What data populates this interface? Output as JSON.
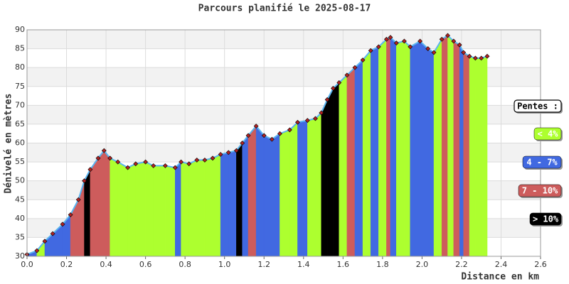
{
  "chart_data": {
    "type": "elevation-area",
    "title": "Parcours planifié le 2025-08-17",
    "x_label": "Distance en km",
    "y_label": "Dénivelé en mètres",
    "x": [
      0.0,
      0.05,
      0.09,
      0.13,
      0.18,
      0.22,
      0.26,
      0.29,
      0.32,
      0.36,
      0.39,
      0.42,
      0.46,
      0.51,
      0.55,
      0.6,
      0.64,
      0.7,
      0.75,
      0.78,
      0.82,
      0.86,
      0.9,
      0.94,
      0.98,
      1.02,
      1.06,
      1.09,
      1.12,
      1.16,
      1.2,
      1.24,
      1.28,
      1.33,
      1.37,
      1.42,
      1.46,
      1.49,
      1.52,
      1.55,
      1.58,
      1.62,
      1.66,
      1.7,
      1.74,
      1.78,
      1.82,
      1.84,
      1.87,
      1.91,
      1.94,
      1.99,
      2.03,
      2.06,
      2.1,
      2.13,
      2.16,
      2.19,
      2.21,
      2.24,
      2.27,
      2.3,
      2.33
    ],
    "values": [
      30.5,
      31.5,
      34,
      36,
      38.5,
      41,
      45,
      50,
      53,
      56,
      58,
      56,
      55,
      53.5,
      54.5,
      55,
      54,
      54,
      53.5,
      55,
      54.5,
      55.5,
      55.5,
      56,
      57,
      57.5,
      58,
      60,
      62,
      64.5,
      62,
      61,
      62.5,
      63.5,
      65.5,
      66,
      66.5,
      68,
      71.5,
      74.5,
      76,
      78,
      80,
      82,
      84.5,
      85.5,
      87.5,
      88,
      86.5,
      87,
      85.5,
      87,
      85,
      84,
      87.5,
      88.5,
      87,
      86,
      84,
      83,
      82.5,
      82.5,
      83
    ],
    "segment_legend_index": [
      1,
      0,
      1,
      1,
      1,
      2,
      2,
      3,
      2,
      2,
      2,
      0,
      0,
      0,
      0,
      0,
      0,
      0,
      1,
      0,
      0,
      0,
      0,
      0,
      1,
      1,
      3,
      1,
      2,
      1,
      1,
      1,
      0,
      0,
      1,
      0,
      0,
      3,
      3,
      3,
      0,
      2,
      1,
      0,
      1,
      0,
      2,
      1,
      0,
      0,
      1,
      1,
      1,
      0,
      2,
      0,
      2,
      1,
      2,
      0,
      0,
      0
    ],
    "line_color": "#5ab4f0",
    "marker_color": "#b22222",
    "xlim": [
      0,
      2.6
    ],
    "ylim": [
      30,
      90
    ],
    "xticks": [
      {
        "value": 0,
        "label": "0.0"
      },
      0.2,
      0.4,
      0.6,
      0.8,
      {
        "value": 1,
        "label": "1.0"
      },
      1.2,
      1.4,
      1.6,
      1.8,
      {
        "value": 2,
        "label": "2.0"
      },
      2.2,
      2.4,
      2.6
    ],
    "yticks": [
      30,
      35,
      40,
      45,
      50,
      55,
      60,
      65,
      70,
      75,
      80,
      85,
      90
    ],
    "grid": true,
    "legend": {
      "title": "Pentes :",
      "items": [
        {
          "label": "< 4%",
          "color": "#adff2f"
        },
        {
          "label": "4 - 7%",
          "color": "#4169e1"
        },
        {
          "label": "7 - 10%",
          "color": "#cd5c5c"
        },
        {
          "label": "> 10%",
          "color": "#000000"
        }
      ]
    }
  }
}
